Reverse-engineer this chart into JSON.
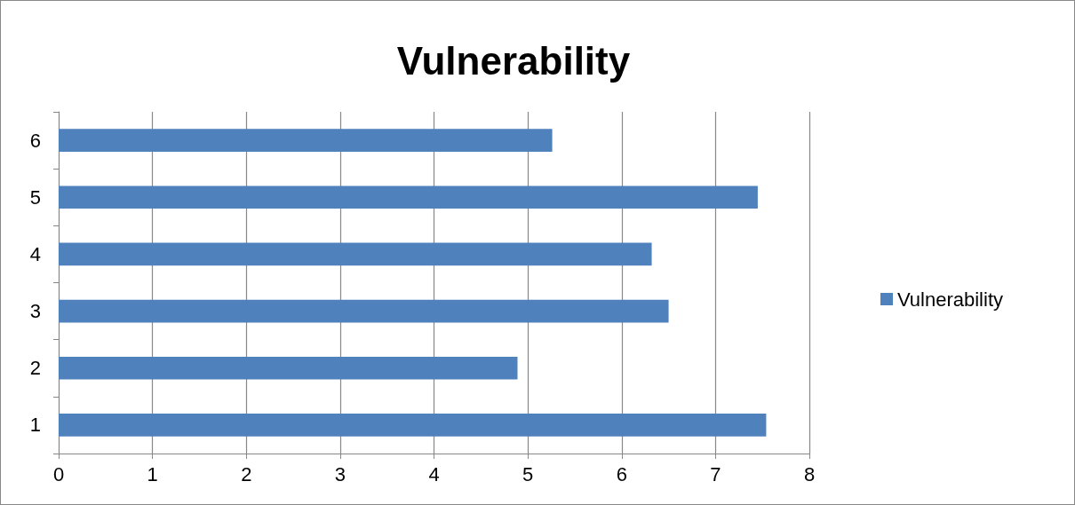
{
  "chart_data": {
    "type": "bar",
    "title": "Vulnerability",
    "orientation": "horizontal",
    "categories": [
      "6",
      "5",
      "4",
      "3",
      "2",
      "1"
    ],
    "series": [
      {
        "name": "Vulnerability",
        "color": "#4f81bd",
        "values": [
          5.26,
          7.45,
          6.32,
          6.5,
          4.89,
          7.54
        ]
      }
    ],
    "xlim": [
      0,
      8
    ],
    "xticks": [
      0,
      1,
      2,
      3,
      4,
      5,
      6,
      7,
      8
    ],
    "grid": "x",
    "legend": "right"
  }
}
